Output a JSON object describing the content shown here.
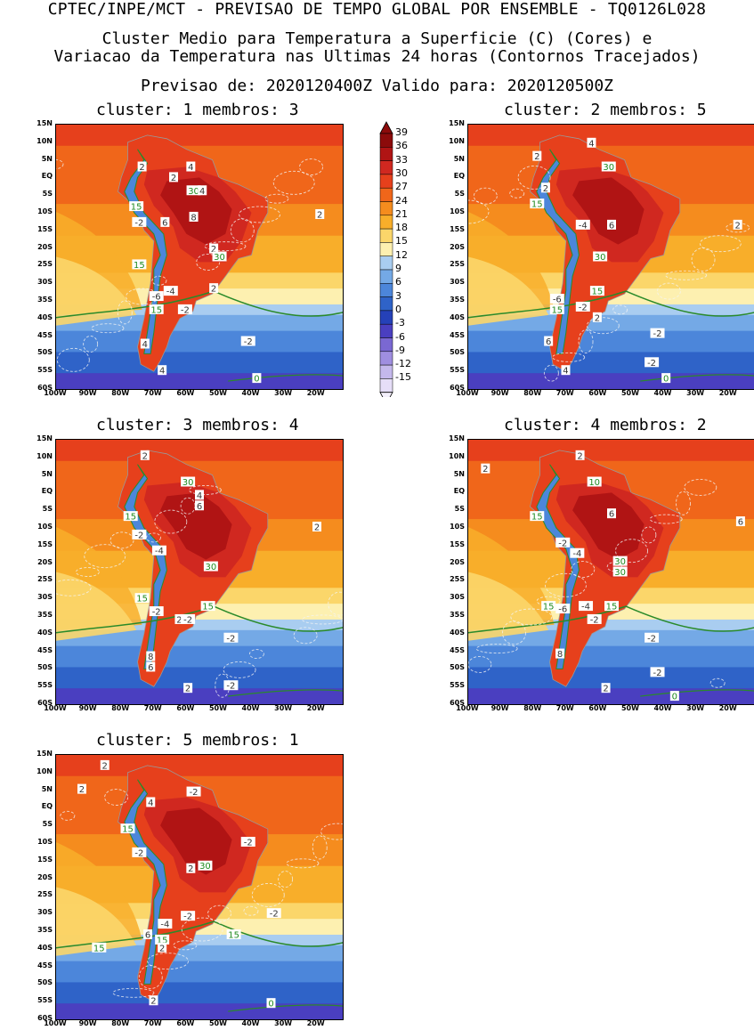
{
  "header": {
    "line1": "CPTEC/INPE/MCT - PREVISAO DE TEMPO GLOBAL POR ENSEMBLE - TQ0126L028",
    "line2": "Cluster Medio para Temperatura a Superficie (C) (Cores) e",
    "line3": "Variacao da Temperatura nas Ultimas 24 horas (Contornos Tracejados)",
    "line4": "Previsao de: 2020120400Z   Valido para: 2020120500Z"
  },
  "axes": {
    "lat_labels": [
      "15N",
      "10N",
      "5N",
      "EQ",
      "5S",
      "10S",
      "15S",
      "20S",
      "25S",
      "30S",
      "35S",
      "40S",
      "45S",
      "50S",
      "55S",
      "60S"
    ],
    "lon_labels": [
      "100W",
      "90W",
      "80W",
      "70W",
      "60W",
      "50W",
      "40W",
      "30W",
      "20W"
    ]
  },
  "colorbar": {
    "labels": [
      "39",
      "36",
      "33",
      "30",
      "27",
      "24",
      "21",
      "18",
      "15",
      "12",
      "9",
      "6",
      "3",
      "0",
      "-3",
      "-6",
      "-9",
      "-12",
      "-15"
    ],
    "colors": [
      "#8c0b0b",
      "#b01414",
      "#d02820",
      "#e6401c",
      "#f0661a",
      "#f58c1e",
      "#f8ae2a",
      "#fbd66a",
      "#fdf0b0",
      "#a9cdf0",
      "#74a9e6",
      "#4c86da",
      "#2f63c8",
      "#2541b8",
      "#4a3fc0",
      "#7a68d2",
      "#9f8ee0",
      "#c4b8ec",
      "#e6def8"
    ]
  },
  "panels": [
    {
      "title": "cluster: 1  membros: 3",
      "labels": [
        {
          "t": "2",
          "c": "dark"
        },
        {
          "t": "4",
          "c": "dark"
        },
        {
          "t": "2",
          "c": "dark"
        },
        {
          "t": "30",
          "c": "green"
        },
        {
          "t": "4",
          "c": "dark"
        },
        {
          "t": "15",
          "c": "green"
        },
        {
          "t": "-2",
          "c": "dark"
        },
        {
          "t": "6",
          "c": "dark"
        },
        {
          "t": "8",
          "c": "dark"
        },
        {
          "t": "2",
          "c": "dark"
        },
        {
          "t": "30",
          "c": "green"
        },
        {
          "t": "15",
          "c": "green"
        },
        {
          "t": "-6",
          "c": "dark"
        },
        {
          "t": "-4",
          "c": "dark"
        },
        {
          "t": "15",
          "c": "green"
        },
        {
          "t": "-2",
          "c": "dark"
        },
        {
          "t": "2",
          "c": "dark"
        },
        {
          "t": "-2",
          "c": "dark"
        },
        {
          "t": "4",
          "c": "dark"
        },
        {
          "t": "4",
          "c": "dark"
        },
        {
          "t": "0",
          "c": "green"
        },
        {
          "t": "2",
          "c": "dark"
        }
      ]
    },
    {
      "title": "cluster: 2  membros: 5",
      "labels": [
        {
          "t": "2",
          "c": "dark"
        },
        {
          "t": "4",
          "c": "dark"
        },
        {
          "t": "2",
          "c": "dark"
        },
        {
          "t": "30",
          "c": "green"
        },
        {
          "t": "15",
          "c": "green"
        },
        {
          "t": "-4",
          "c": "dark"
        },
        {
          "t": "6",
          "c": "dark"
        },
        {
          "t": "30",
          "c": "green"
        },
        {
          "t": "15",
          "c": "green"
        },
        {
          "t": "-6",
          "c": "dark"
        },
        {
          "t": "15",
          "c": "green"
        },
        {
          "t": "-2",
          "c": "dark"
        },
        {
          "t": "2",
          "c": "dark"
        },
        {
          "t": "-2",
          "c": "dark"
        },
        {
          "t": "6",
          "c": "dark"
        },
        {
          "t": "-2",
          "c": "dark"
        },
        {
          "t": "4",
          "c": "dark"
        },
        {
          "t": "0",
          "c": "green"
        },
        {
          "t": "2",
          "c": "dark"
        }
      ]
    },
    {
      "title": "cluster: 3  membros: 4",
      "labels": [
        {
          "t": "2",
          "c": "dark"
        },
        {
          "t": "30",
          "c": "green"
        },
        {
          "t": "4",
          "c": "dark"
        },
        {
          "t": "6",
          "c": "dark"
        },
        {
          "t": "15",
          "c": "green"
        },
        {
          "t": "-2",
          "c": "dark"
        },
        {
          "t": "-4",
          "c": "dark"
        },
        {
          "t": "30",
          "c": "green"
        },
        {
          "t": "15",
          "c": "green"
        },
        {
          "t": "-2",
          "c": "dark"
        },
        {
          "t": "15",
          "c": "green"
        },
        {
          "t": "2",
          "c": "dark"
        },
        {
          "t": "-2",
          "c": "dark"
        },
        {
          "t": "8",
          "c": "dark"
        },
        {
          "t": "6",
          "c": "dark"
        },
        {
          "t": "-2",
          "c": "dark"
        },
        {
          "t": "2",
          "c": "dark"
        },
        {
          "t": "-2",
          "c": "dark"
        },
        {
          "t": "2",
          "c": "dark"
        }
      ]
    },
    {
      "title": "cluster: 4  membros: 2",
      "labels": [
        {
          "t": "2",
          "c": "dark"
        },
        {
          "t": "2",
          "c": "dark"
        },
        {
          "t": "10",
          "c": "green"
        },
        {
          "t": "6",
          "c": "dark"
        },
        {
          "t": "15",
          "c": "green"
        },
        {
          "t": "-2",
          "c": "dark"
        },
        {
          "t": "-4",
          "c": "dark"
        },
        {
          "t": "30",
          "c": "green"
        },
        {
          "t": "30",
          "c": "green"
        },
        {
          "t": "15",
          "c": "green"
        },
        {
          "t": "-6",
          "c": "dark"
        },
        {
          "t": "15",
          "c": "green"
        },
        {
          "t": "-4",
          "c": "dark"
        },
        {
          "t": "-2",
          "c": "dark"
        },
        {
          "t": "8",
          "c": "dark"
        },
        {
          "t": "-2",
          "c": "dark"
        },
        {
          "t": "2",
          "c": "dark"
        },
        {
          "t": "-2",
          "c": "dark"
        },
        {
          "t": "0",
          "c": "green"
        },
        {
          "t": "6",
          "c": "dark"
        }
      ]
    },
    {
      "title": "cluster: 5  membros: 1",
      "labels": [
        {
          "t": "2",
          "c": "dark"
        },
        {
          "t": "2",
          "c": "dark"
        },
        {
          "t": "-2",
          "c": "dark"
        },
        {
          "t": "4",
          "c": "dark"
        },
        {
          "t": "15",
          "c": "green"
        },
        {
          "t": "-2",
          "c": "dark"
        },
        {
          "t": "30",
          "c": "green"
        },
        {
          "t": "2",
          "c": "dark"
        },
        {
          "t": "-2",
          "c": "dark"
        },
        {
          "t": "15",
          "c": "green"
        },
        {
          "t": "-2",
          "c": "dark"
        },
        {
          "t": "-4",
          "c": "dark"
        },
        {
          "t": "15",
          "c": "green"
        },
        {
          "t": "15",
          "c": "green"
        },
        {
          "t": "-2",
          "c": "dark"
        },
        {
          "t": "6",
          "c": "dark"
        },
        {
          "t": "2",
          "c": "dark"
        },
        {
          "t": "0",
          "c": "green"
        },
        {
          "t": "2",
          "c": "dark"
        }
      ]
    }
  ]
}
